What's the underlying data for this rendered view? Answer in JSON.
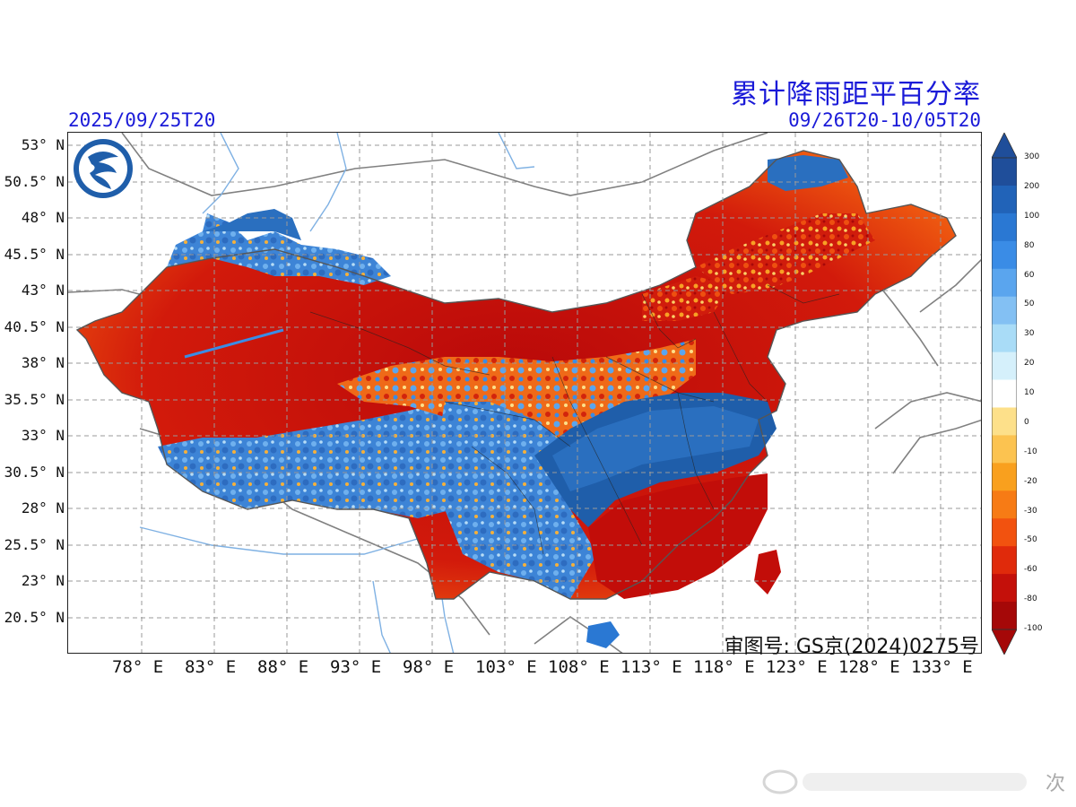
{
  "header": {
    "title": "累计降雨距平百分率",
    "init_time": "2025/09/25T20",
    "valid_period": "09/26T20-10/05T20"
  },
  "map": {
    "approval_number": "审图号: GS京(2024)0275号",
    "lat_labels": [
      "53° N",
      "50.5° N",
      "48° N",
      "45.5° N",
      "43° N",
      "40.5° N",
      "38° N",
      "35.5° N",
      "33° N",
      "30.5° N",
      "28° N",
      "25.5° N",
      "23° N",
      "20.5° N"
    ],
    "lon_labels": [
      "78° E",
      "83° E",
      "88° E",
      "93° E",
      "98° E",
      "103° E",
      "108° E",
      "113° E",
      "118° E",
      "123° E",
      "128° E",
      "133° E"
    ],
    "logo_icon": "weather-agency-logo-icon"
  },
  "colorbar": {
    "levels": [
      "300",
      "200",
      "100",
      "80",
      "60",
      "50",
      "30",
      "20",
      "10",
      "0",
      "-10",
      "-20",
      "-30",
      "-50",
      "-60",
      "-80",
      "-100"
    ],
    "colors": [
      "#1f4e9a",
      "#2163b8",
      "#2a78d3",
      "#3a8ce6",
      "#5aa5ee",
      "#83c0f3",
      "#a9dcf7",
      "#d5f0fb",
      "#ffffff",
      "#fde08a",
      "#fcc350",
      "#f9a01e",
      "#f77b15",
      "#f2520f",
      "#e02a0b",
      "#c4100a",
      "#a50808"
    ]
  },
  "watermark": {
    "text": "次"
  }
}
